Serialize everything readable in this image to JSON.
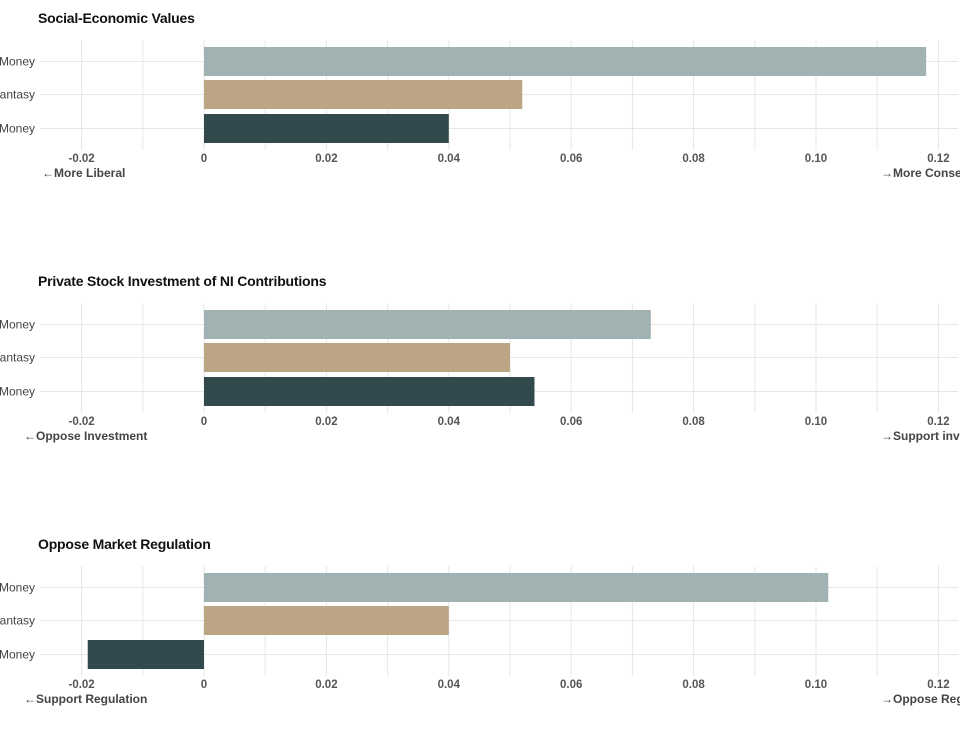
{
  "colors": {
    "series_top": "#a0b3b2",
    "series_mid": "#bca585",
    "series_bottom": "#324a4e",
    "grid": "#e6e6e6"
  },
  "chart_data": [
    {
      "type": "bar",
      "orientation": "horizontal",
      "title": "Social-Economic Values",
      "categories": [
        "Money",
        "Fantasy",
        "Money"
      ],
      "values": [
        0.118,
        0.052,
        0.04
      ],
      "xlim": [
        -0.03,
        0.125
      ],
      "xticks": [
        -0.02,
        0,
        0.02,
        0.04,
        0.06,
        0.08,
        0.1,
        0.12
      ],
      "xtick_labels": [
        "-0.02",
        "0",
        "0.02",
        "0.04",
        "0.06",
        "0.08",
        "0.10",
        "0.12"
      ],
      "left_label": "←More Liberal",
      "right_label": "→More Conse",
      "grid": true
    },
    {
      "type": "bar",
      "orientation": "horizontal",
      "title": "Private Stock Investment of NI Contributions",
      "categories": [
        "Money",
        "Fantasy",
        "Money"
      ],
      "values": [
        0.073,
        0.05,
        0.054
      ],
      "xlim": [
        -0.03,
        0.125
      ],
      "xticks": [
        -0.02,
        0,
        0.02,
        0.04,
        0.06,
        0.08,
        0.1,
        0.12
      ],
      "xtick_labels": [
        "-0.02",
        "0",
        "0.02",
        "0.04",
        "0.06",
        "0.08",
        "0.10",
        "0.12"
      ],
      "left_label": "←Oppose Investment",
      "right_label": "→Support inve",
      "grid": true
    },
    {
      "type": "bar",
      "orientation": "horizontal",
      "title": "Oppose Market Regulation",
      "categories": [
        "Money",
        "Fantasy",
        "Money"
      ],
      "values": [
        0.102,
        0.04,
        -0.019
      ],
      "xlim": [
        -0.03,
        0.125
      ],
      "xticks": [
        -0.02,
        0,
        0.02,
        0.04,
        0.06,
        0.08,
        0.1,
        0.12
      ],
      "xtick_labels": [
        "-0.02",
        "0",
        "0.02",
        "0.04",
        "0.06",
        "0.08",
        "0.10",
        "0.12"
      ],
      "left_label": "←Support Regulation",
      "right_label": "→Oppose Reg",
      "grid": true
    }
  ]
}
